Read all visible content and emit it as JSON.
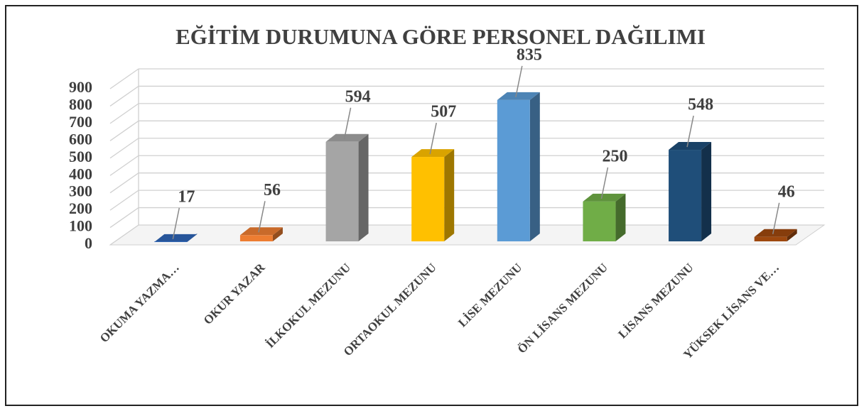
{
  "chart_data": {
    "type": "bar3d",
    "title": "EĞİTİM DURUMUNA GÖRE PERSONEL DAĞILIMI",
    "categories": [
      "OKUMA YAZMA…",
      "OKUR YAZAR",
      "İLKOKUL MEZUNU",
      "ORTAOKUL MEZUNU",
      "LİSE MEZUNU",
      "ÖN LİSANS MEZUNU",
      "LİSANS MEZUNU",
      "YÜKSEK LİSANS VE…"
    ],
    "values": [
      17,
      56,
      594,
      507,
      835,
      250,
      548,
      46
    ],
    "colors": [
      "#2e64b5",
      "#ed7d31",
      "#a5a5a5",
      "#ffc000",
      "#5b9bd5",
      "#70ad47",
      "#1f4e79",
      "#9e480e"
    ],
    "ylim": [
      0,
      900
    ],
    "yticks": [
      0,
      100,
      200,
      300,
      400,
      500,
      600,
      700,
      800,
      900
    ],
    "grid": true
  }
}
